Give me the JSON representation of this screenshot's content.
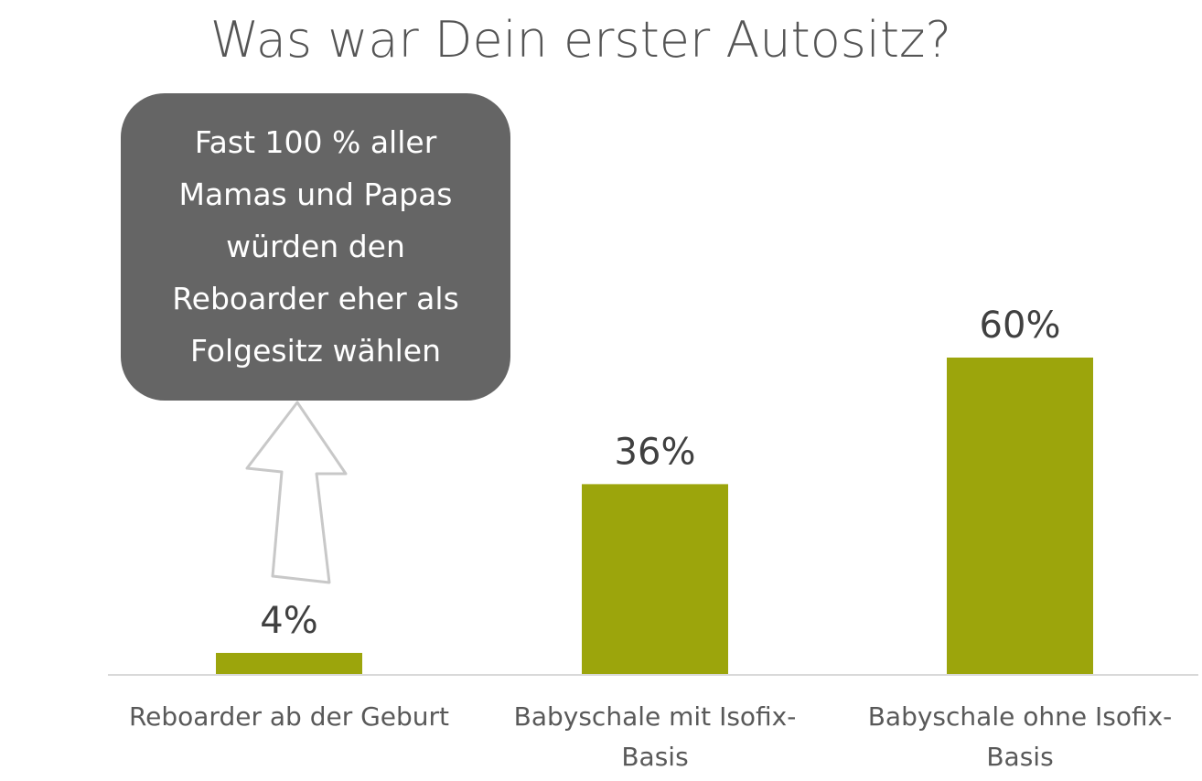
{
  "chart_data": {
    "type": "bar",
    "title": "Was war Dein erster Autositz?",
    "categories": [
      "Reboarder ab der Geburt",
      "Babyschale mit Isofix-Basis",
      "Babyschale ohne Isofix-Basis"
    ],
    "category_labels": [
      [
        "Reboarder ab der Geburt"
      ],
      [
        "Babyschale mit Isofix-",
        "Basis"
      ],
      [
        "Babyschale ohne Isofix-",
        "Basis"
      ]
    ],
    "values": [
      4,
      36,
      60
    ],
    "data_labels": [
      "4%",
      "36%",
      "60%"
    ],
    "unit": "%",
    "ylim": [
      0,
      60
    ],
    "grid": false,
    "xlabel": "",
    "ylabel": "",
    "bar_color": "#9ca50c",
    "annotation": {
      "lines": [
        "Fast 100 % aller",
        "Mamas und Papas",
        "würden den",
        "Reboarder eher als",
        "Folgesitz wählen"
      ],
      "background": "#656565",
      "arrow": "up-arrow-icon"
    }
  }
}
